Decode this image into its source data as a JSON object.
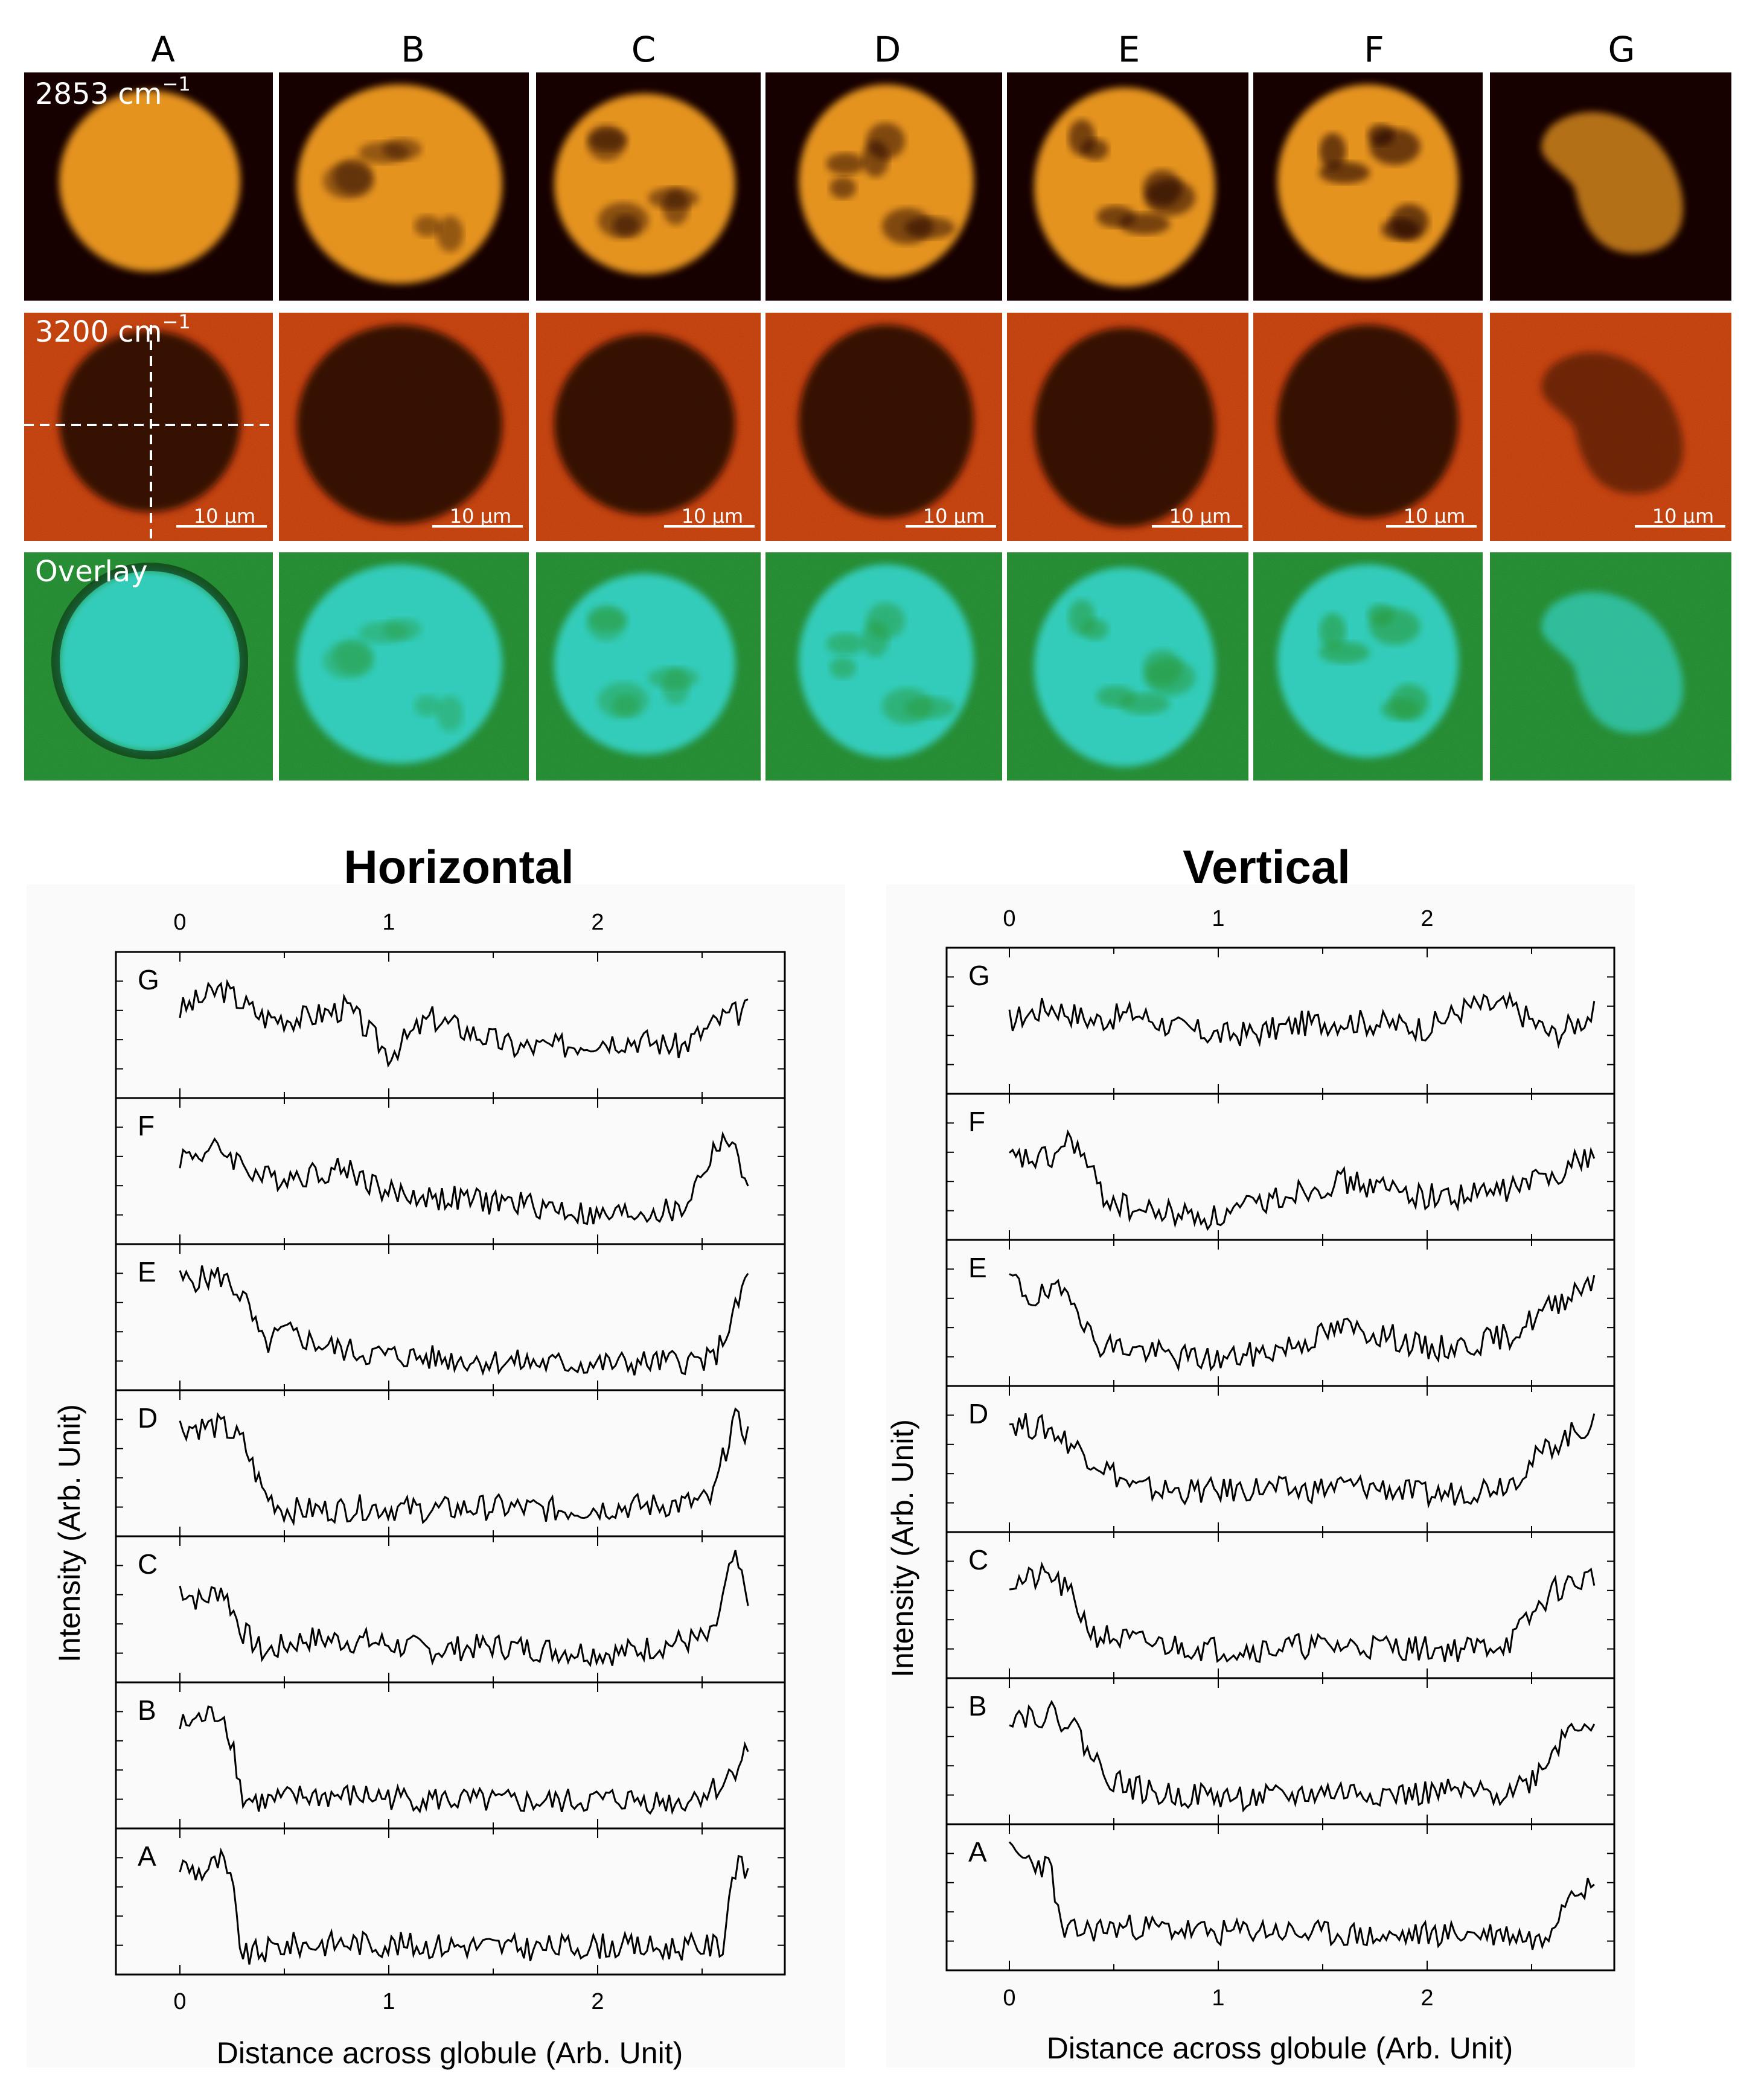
{
  "figure": {
    "columns": [
      "A",
      "B",
      "C",
      "D",
      "E",
      "F",
      "G"
    ],
    "row_labels": {
      "ch": "2853 cm",
      "ch_sup": "−1",
      "oh": "3200 cm",
      "oh_sup": "−1",
      "overlay": "Overlay"
    },
    "scale_bar_label": "10 μm",
    "colors": {
      "ch_background": "#1a0300",
      "ch_globule": "#f7a020",
      "oh_background": "#d44a14",
      "oh_globule": "#2a0704",
      "overlay_background": "#2c9a3a",
      "overlay_globule": "#35d2c6"
    }
  },
  "chart_data": [
    {
      "type": "line",
      "title": "Horizontal",
      "xlabel": "Distance across globule (Arb. Unit)",
      "ylabel": "Intensity (Arb. Unit)",
      "xlim": [
        -0.3,
        2.9
      ],
      "xticks": [
        "0",
        "1",
        "2"
      ],
      "series": [
        {
          "name": "G",
          "x": [
            0,
            0.2,
            0.4,
            0.6,
            0.8,
            1.0,
            1.2,
            1.4,
            1.6,
            1.8,
            2.0,
            2.2,
            2.4,
            2.6,
            2.72
          ],
          "values": [
            0.6,
            0.75,
            0.55,
            0.55,
            0.62,
            0.3,
            0.55,
            0.45,
            0.35,
            0.35,
            0.4,
            0.4,
            0.35,
            0.55,
            0.6
          ]
        },
        {
          "name": "F",
          "x": [
            0,
            0.2,
            0.4,
            0.6,
            0.8,
            1.0,
            1.2,
            1.4,
            1.6,
            1.8,
            2.0,
            2.2,
            2.4,
            2.6,
            2.72
          ],
          "values": [
            0.6,
            0.65,
            0.45,
            0.48,
            0.52,
            0.35,
            0.32,
            0.3,
            0.28,
            0.25,
            0.18,
            0.22,
            0.22,
            0.75,
            0.45
          ]
        },
        {
          "name": "E",
          "x": [
            0,
            0.2,
            0.3,
            0.4,
            0.5,
            0.7,
            0.9,
            1.2,
            1.5,
            1.8,
            2.1,
            2.4,
            2.55,
            2.65,
            2.72
          ],
          "values": [
            0.75,
            0.78,
            0.65,
            0.3,
            0.4,
            0.3,
            0.25,
            0.22,
            0.2,
            0.18,
            0.18,
            0.2,
            0.2,
            0.5,
            0.8
          ]
        },
        {
          "name": "D",
          "x": [
            0,
            0.2,
            0.3,
            0.4,
            0.5,
            0.7,
            0.9,
            1.2,
            1.5,
            1.8,
            2.1,
            2.4,
            2.55,
            2.65,
            2.72
          ],
          "values": [
            0.75,
            0.75,
            0.65,
            0.3,
            0.18,
            0.18,
            0.2,
            0.18,
            0.2,
            0.18,
            0.2,
            0.22,
            0.25,
            0.8,
            0.7
          ]
        },
        {
          "name": "C",
          "x": [
            0,
            0.1,
            0.2,
            0.3,
            0.4,
            0.6,
            0.9,
            1.2,
            1.5,
            1.8,
            2.1,
            2.4,
            2.55,
            2.65,
            2.72
          ],
          "values": [
            0.65,
            0.55,
            0.65,
            0.35,
            0.2,
            0.3,
            0.28,
            0.22,
            0.25,
            0.22,
            0.2,
            0.28,
            0.3,
            0.85,
            0.6
          ]
        },
        {
          "name": "B",
          "x": [
            0,
            0.1,
            0.2,
            0.25,
            0.3,
            0.4,
            0.6,
            0.9,
            1.2,
            1.5,
            1.8,
            2.1,
            2.4,
            2.6,
            2.72
          ],
          "values": [
            0.7,
            0.75,
            0.8,
            0.6,
            0.2,
            0.18,
            0.22,
            0.22,
            0.2,
            0.18,
            0.18,
            0.2,
            0.18,
            0.3,
            0.55
          ]
        },
        {
          "name": "A",
          "x": [
            0,
            0.1,
            0.2,
            0.25,
            0.3,
            0.5,
            0.8,
            1.1,
            1.4,
            1.7,
            2.0,
            2.3,
            2.6,
            2.65,
            2.72
          ],
          "values": [
            0.75,
            0.7,
            0.78,
            0.6,
            0.12,
            0.2,
            0.22,
            0.2,
            0.2,
            0.18,
            0.2,
            0.18,
            0.2,
            0.75,
            0.7
          ]
        }
      ]
    },
    {
      "type": "line",
      "title": "Vertical",
      "xlabel": "Distance across globule (Arb. Unit)",
      "ylabel": "Intensity (Arb. Unit)",
      "xlim": [
        -0.3,
        2.9
      ],
      "xticks": [
        "0",
        "1",
        "2"
      ],
      "series": [
        {
          "name": "G",
          "x": [
            0,
            0.2,
            0.4,
            0.6,
            0.8,
            1.0,
            1.2,
            1.4,
            1.6,
            1.8,
            2.0,
            2.2,
            2.4,
            2.6,
            2.8
          ],
          "values": [
            0.5,
            0.6,
            0.5,
            0.55,
            0.45,
            0.4,
            0.42,
            0.48,
            0.5,
            0.48,
            0.45,
            0.6,
            0.6,
            0.4,
            0.55
          ]
        },
        {
          "name": "F",
          "x": [
            0,
            0.2,
            0.3,
            0.45,
            0.6,
            0.8,
            1.0,
            1.2,
            1.4,
            1.6,
            1.8,
            2.0,
            2.2,
            2.4,
            2.6,
            2.8
          ],
          "values": [
            0.55,
            0.55,
            0.7,
            0.3,
            0.2,
            0.18,
            0.15,
            0.25,
            0.35,
            0.4,
            0.35,
            0.3,
            0.3,
            0.35,
            0.45,
            0.6
          ]
        },
        {
          "name": "E",
          "x": [
            0,
            0.1,
            0.3,
            0.4,
            0.6,
            0.8,
            1.0,
            1.2,
            1.4,
            1.6,
            1.8,
            2.0,
            2.2,
            2.4,
            2.6,
            2.8
          ],
          "values": [
            0.75,
            0.6,
            0.65,
            0.3,
            0.25,
            0.2,
            0.18,
            0.22,
            0.3,
            0.4,
            0.35,
            0.25,
            0.28,
            0.35,
            0.55,
            0.75
          ]
        },
        {
          "name": "D",
          "x": [
            0,
            0.2,
            0.4,
            0.6,
            0.8,
            1.0,
            1.2,
            1.4,
            1.6,
            1.8,
            2.0,
            2.2,
            2.4,
            2.6,
            2.8
          ],
          "values": [
            0.75,
            0.7,
            0.5,
            0.3,
            0.28,
            0.28,
            0.3,
            0.28,
            0.32,
            0.3,
            0.25,
            0.28,
            0.35,
            0.6,
            0.75
          ]
        },
        {
          "name": "C",
          "x": [
            0,
            0.2,
            0.3,
            0.4,
            0.6,
            0.8,
            1.0,
            1.2,
            1.4,
            1.6,
            1.8,
            2.0,
            2.2,
            2.4,
            2.6,
            2.8
          ],
          "values": [
            0.65,
            0.7,
            0.55,
            0.3,
            0.25,
            0.22,
            0.2,
            0.2,
            0.22,
            0.22,
            0.22,
            0.2,
            0.2,
            0.25,
            0.6,
            0.7
          ]
        },
        {
          "name": "B",
          "x": [
            0,
            0.2,
            0.3,
            0.4,
            0.5,
            0.7,
            0.9,
            1.1,
            1.3,
            1.5,
            1.7,
            1.9,
            2.1,
            2.3,
            2.5,
            2.7,
            2.8
          ],
          "values": [
            0.75,
            0.75,
            0.7,
            0.45,
            0.3,
            0.2,
            0.2,
            0.18,
            0.18,
            0.22,
            0.22,
            0.2,
            0.22,
            0.2,
            0.3,
            0.7,
            0.7
          ]
        },
        {
          "name": "A",
          "x": [
            0,
            0.1,
            0.2,
            0.25,
            0.4,
            0.6,
            0.8,
            1.0,
            1.2,
            1.4,
            1.6,
            1.8,
            2.0,
            2.2,
            2.4,
            2.55,
            2.7,
            2.8
          ],
          "values": [
            0.8,
            0.75,
            0.7,
            0.25,
            0.28,
            0.3,
            0.28,
            0.25,
            0.28,
            0.25,
            0.25,
            0.22,
            0.25,
            0.25,
            0.25,
            0.2,
            0.6,
            0.55
          ]
        }
      ]
    }
  ]
}
